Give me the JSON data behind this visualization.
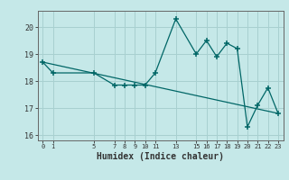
{
  "xlabel": "Humidex (Indice chaleur)",
  "background_color": "#c5e8e8",
  "grid_color": "#a8d0d0",
  "line_color": "#006666",
  "ylim": [
    15.8,
    20.6
  ],
  "xlim": [
    -0.5,
    23.5
  ],
  "yticks": [
    16,
    17,
    18,
    19,
    20
  ],
  "line1_x": [
    0,
    1,
    5,
    7,
    8,
    9,
    10,
    11,
    13,
    15,
    16,
    17,
    18,
    19,
    20,
    21,
    22,
    23
  ],
  "line1_y": [
    18.7,
    18.3,
    18.3,
    17.85,
    17.85,
    17.85,
    17.85,
    18.3,
    20.3,
    19.0,
    19.5,
    18.9,
    19.4,
    19.2,
    16.3,
    17.1,
    17.75,
    16.8
  ],
  "trend_x": [
    0,
    23
  ],
  "trend_y": [
    18.7,
    16.8
  ],
  "xtick_positions": [
    0,
    1,
    5,
    7,
    8,
    9,
    10,
    11,
    13,
    15,
    16,
    17,
    18,
    19,
    20,
    21,
    22,
    23
  ],
  "xtick_labels": [
    "0",
    "1",
    "5",
    "7",
    "8",
    "9",
    "10",
    "11",
    "13",
    "15",
    "16",
    "17",
    "18",
    "19",
    "20",
    "21",
    "22",
    "23"
  ]
}
